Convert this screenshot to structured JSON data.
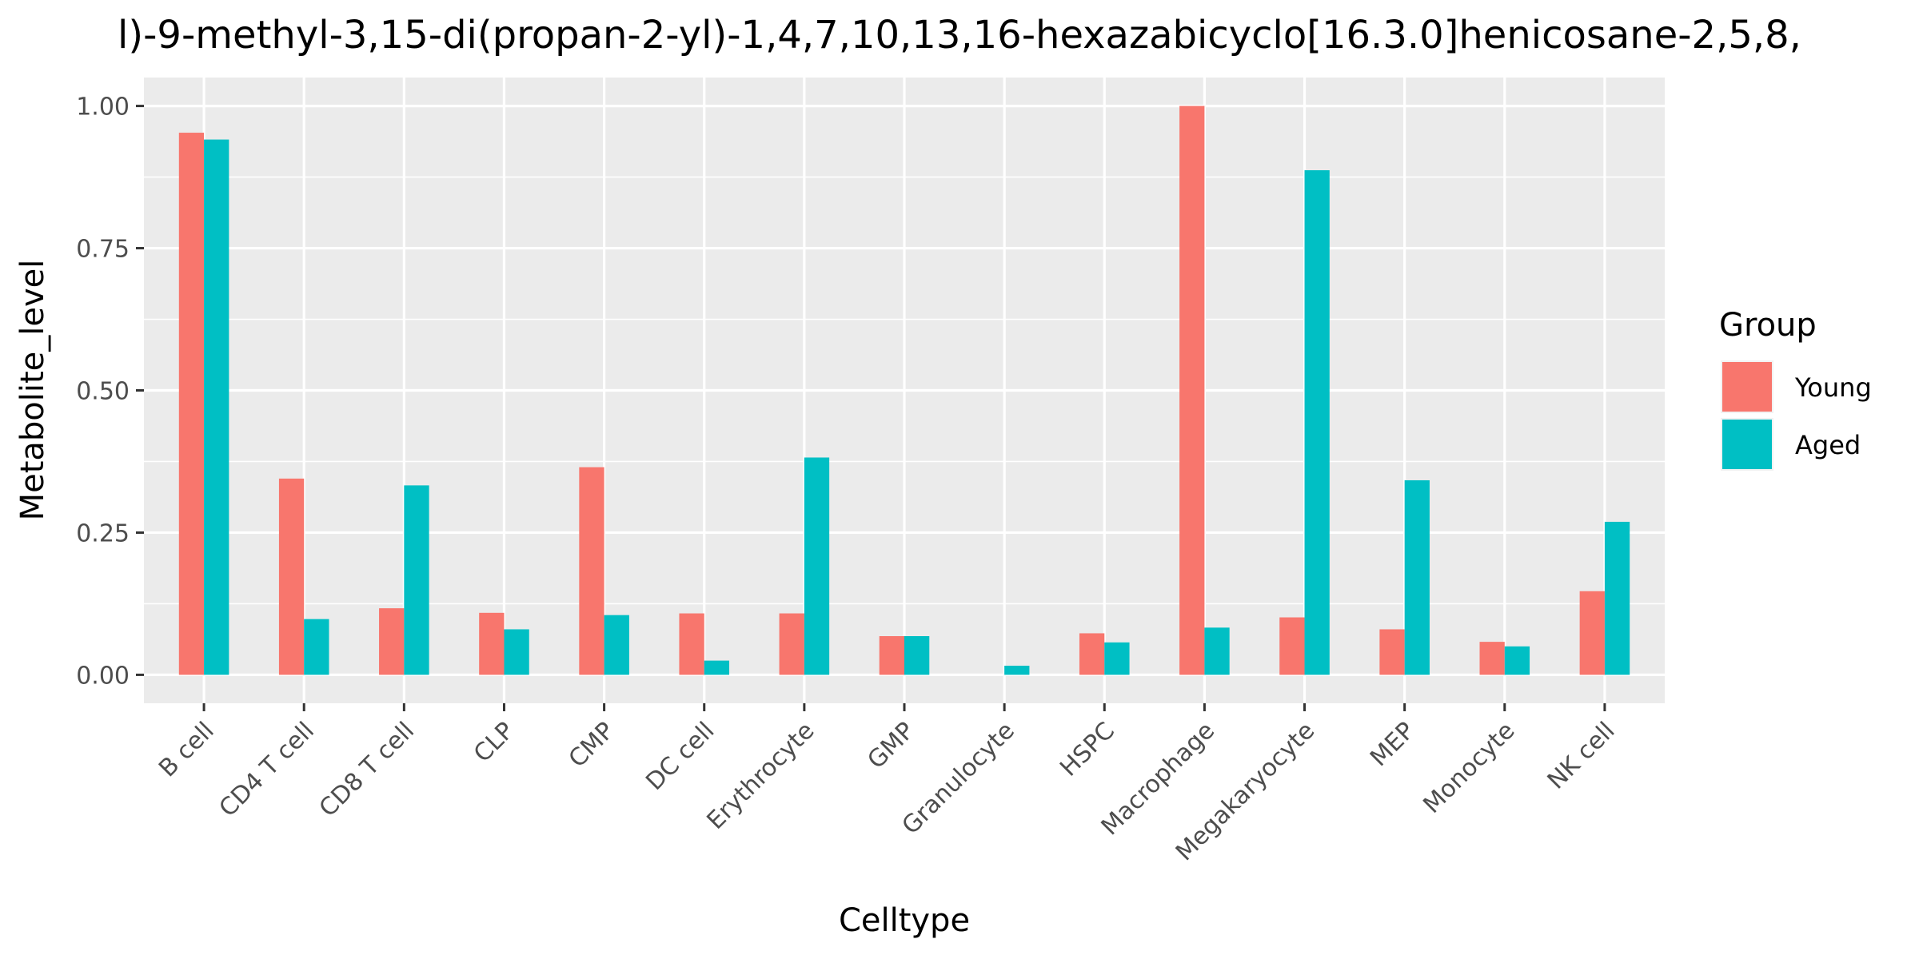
{
  "chart_data": {
    "type": "bar",
    "title": "l)-9-methyl-3,15-di(propan-2-yl)-1,4,7,10,13,16-hexazabicyclo[16.3.0]henicosane-2,5,8,",
    "xlabel": "Celltype",
    "ylabel": "Metabolite_level",
    "ylim": [
      -0.05,
      1.05
    ],
    "yticks": [
      0.0,
      0.25,
      0.5,
      0.75,
      1.0
    ],
    "ytick_labels": [
      "0.00",
      "0.25",
      "0.50",
      "0.75",
      "1.00"
    ],
    "categories": [
      "B cell",
      "CD4 T cell",
      "CD8 T cell",
      "CLP",
      "CMP",
      "DC cell",
      "Erythrocyte",
      "GMP",
      "Granulocyte",
      "HSPC",
      "Macrophage",
      "Megakaryocyte",
      "MEP",
      "Monocyte",
      "NK cell"
    ],
    "series": [
      {
        "name": "Young",
        "color": "#F8766D",
        "values": [
          0.953,
          0.345,
          0.117,
          0.109,
          0.365,
          0.108,
          0.108,
          0.068,
          0.0,
          0.073,
          1.0,
          0.101,
          0.08,
          0.058,
          0.147
        ]
      },
      {
        "name": "Aged",
        "color": "#00BFC4",
        "values": [
          0.941,
          0.098,
          0.333,
          0.08,
          0.105,
          0.025,
          0.382,
          0.068,
          0.016,
          0.057,
          0.083,
          0.887,
          0.342,
          0.05,
          0.269
        ]
      }
    ],
    "legend": {
      "title": "Group",
      "position": "right"
    },
    "grid": true,
    "background": "#EBEBEB"
  }
}
